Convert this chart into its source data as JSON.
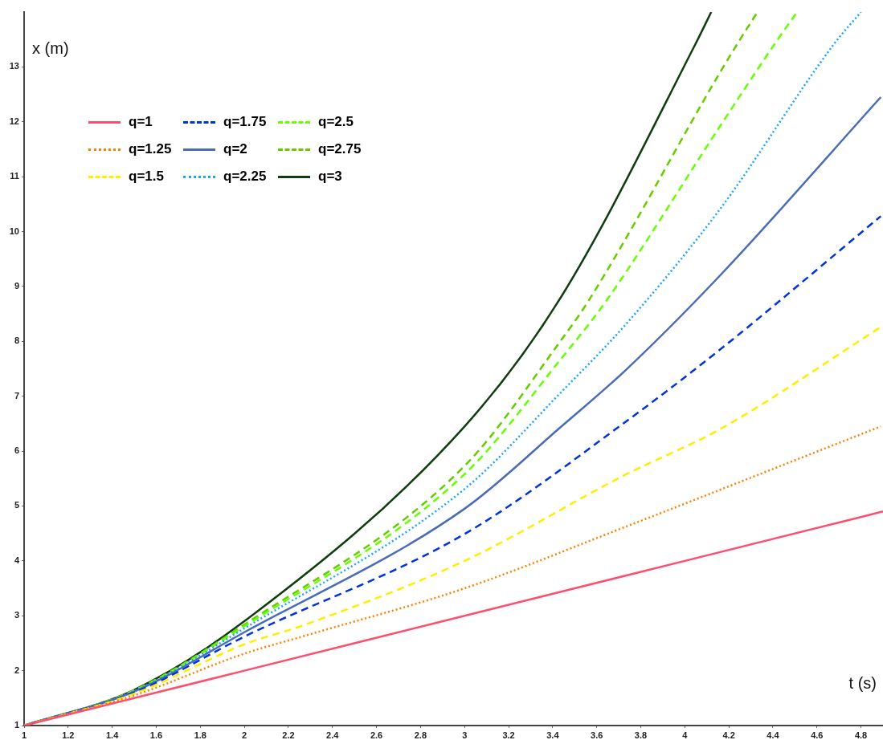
{
  "chart_data": {
    "type": "line",
    "xlabel": "t (s)",
    "ylabel": "x (m)",
    "xlim": [
      1,
      4.9
    ],
    "ylim": [
      1,
      14
    ],
    "xticks": [
      1,
      1.2,
      1.4,
      1.6,
      1.8,
      2,
      2.2,
      2.4,
      2.6,
      2.8,
      3,
      3.2,
      3.4,
      3.6,
      3.8,
      4,
      4.2,
      4.4,
      4.6,
      4.8
    ],
    "yticks": [
      1,
      2,
      3,
      4,
      5,
      6,
      7,
      8,
      9,
      10,
      11,
      12,
      13
    ],
    "grid": false,
    "legend": "top left",
    "marker": "none",
    "series": [
      {
        "name": "q=1",
        "color": "#ff4d6d",
        "line_style": "solid",
        "x": [
          1,
          2,
          3,
          4,
          4.9
        ],
        "values": [
          1,
          2,
          3,
          4,
          4.9
        ]
      },
      {
        "name": "q=1.25",
        "color": "#ff8000",
        "line_style": "dotted",
        "x": [
          1,
          1.5,
          2,
          2.27,
          3,
          3.73,
          4.89
        ],
        "values": [
          1,
          1.55,
          2.31,
          2.63,
          3.5,
          4.62,
          6.45
        ]
      },
      {
        "name": "q=1.5",
        "color": "#ffee00",
        "line_style": "dashed",
        "x": [
          1,
          1.5,
          2,
          2.27,
          3,
          3.73,
          4.16,
          4.89
        ],
        "values": [
          1,
          1.58,
          2.48,
          2.83,
          4,
          5.57,
          6.4,
          8.26
        ]
      },
      {
        "name": "q=1.75",
        "color": "#0033dd",
        "line_style": "dashed",
        "x": [
          1,
          1.5,
          2,
          3,
          3.73,
          4.16,
          4.89
        ],
        "values": [
          1,
          1.6,
          2.62,
          4.49,
          6.53,
          7.85,
          10.28
        ]
      },
      {
        "name": "q=2",
        "color": "#4a6cb8",
        "line_style": "solid",
        "x": [
          1,
          1.5,
          2,
          3,
          3.44,
          3.73,
          4.16,
          4.89
        ],
        "values": [
          1,
          1.62,
          2.7,
          4.95,
          6.45,
          7.47,
          9.2,
          12.45
        ]
      },
      {
        "name": "q=2.25",
        "color": "#1aa3ff",
        "line_style": "dotted",
        "x": [
          1,
          1.5,
          2,
          3,
          3.44,
          3.73,
          4.16,
          4.68,
          4.8
        ],
        "values": [
          1,
          1.63,
          2.77,
          5.31,
          7.08,
          8.3,
          10.41,
          13.43,
          14
        ]
      },
      {
        "name": "q=2.5",
        "color": "#66ff00",
        "line_style": "dashed",
        "x": [
          1,
          1.5,
          2,
          3,
          3.44,
          3.64,
          4.16,
          4.41,
          4.51
        ],
        "values": [
          1,
          1.64,
          2.81,
          5.58,
          7.69,
          8.72,
          11.92,
          13.43,
          14
        ]
      },
      {
        "name": "q=2.75",
        "color": "#66cc00",
        "line_style": "dashed",
        "x": [
          1,
          1.5,
          2,
          3,
          3.44,
          3.56,
          4.16,
          4.24,
          4.33
        ],
        "values": [
          1,
          1.64,
          2.84,
          5.73,
          8.03,
          8.72,
          12.9,
          13.43,
          14
        ]
      },
      {
        "name": "q=3",
        "color": "#0f3d0f",
        "line_style": "solid",
        "x": [
          1,
          1.5,
          2,
          3,
          3.44,
          4.05,
          4.12
        ],
        "values": [
          1,
          1.65,
          2.9,
          6.45,
          8.82,
          13.43,
          14
        ]
      }
    ]
  }
}
